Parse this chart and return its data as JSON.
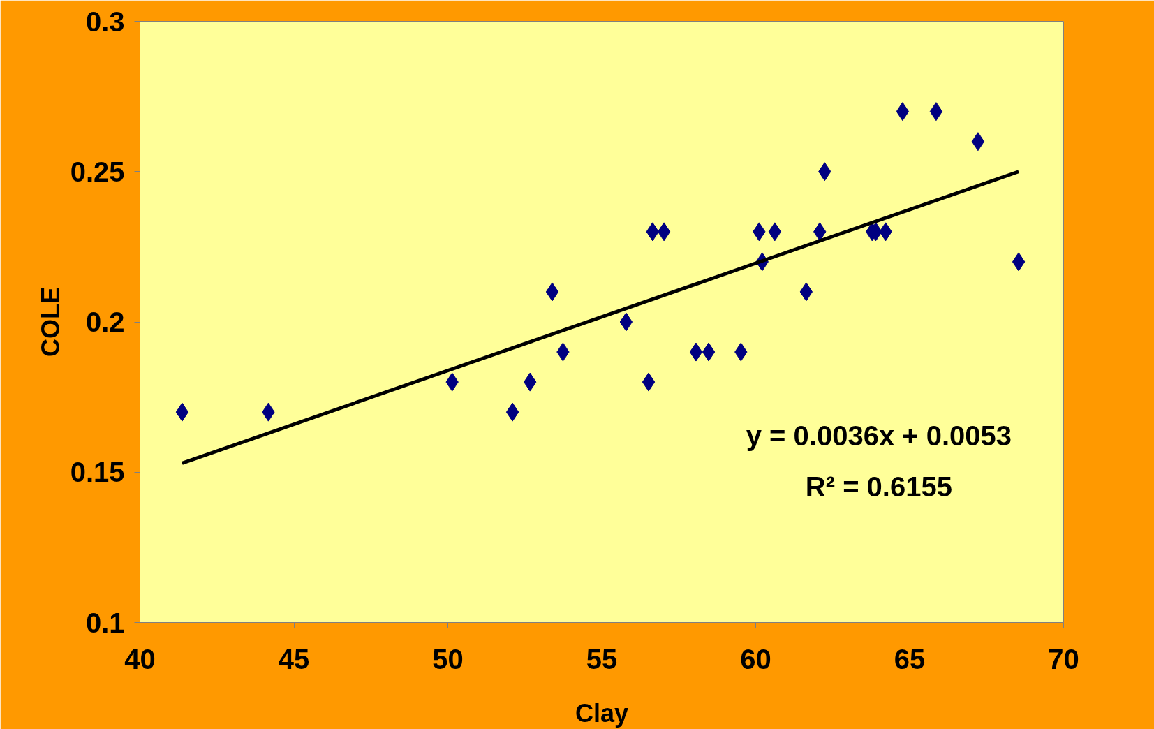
{
  "chart_data": {
    "type": "scatter",
    "xlabel": "Clay",
    "ylabel": "COLE",
    "xlim": [
      40,
      70
    ],
    "ylim": [
      0.1,
      0.3
    ],
    "xticks": [
      40,
      45,
      50,
      55,
      60,
      65,
      70
    ],
    "yticks": [
      0.1,
      0.15,
      0.2,
      0.25,
      0.3
    ],
    "grid": false,
    "marker": "diamond",
    "annotations": [
      "y = 0.0036x + 0.0053",
      "R² = 0.6155"
    ],
    "series": [
      {
        "color": "#000080",
        "x": [
          41.37,
          44.17,
          50.14,
          52.1,
          52.67,
          53.39,
          53.74,
          55.79,
          56.52,
          56.65,
          57.02,
          58.06,
          58.47,
          59.52,
          60.11,
          60.21,
          60.62,
          61.64,
          62.08,
          62.24,
          63.78,
          63.9,
          64.22,
          64.77,
          65.86,
          67.22,
          68.54
        ],
        "values": [
          0.17,
          0.17,
          0.18,
          0.17,
          0.18,
          0.21,
          0.19,
          0.2,
          0.18,
          0.23,
          0.23,
          0.19,
          0.19,
          0.19,
          0.23,
          0.22,
          0.23,
          0.21,
          0.23,
          0.25,
          0.23,
          0.23,
          0.23,
          0.27,
          0.27,
          0.26,
          0.22
        ]
      },
      {
        "type": "line",
        "marker": "none",
        "color": "#000000",
        "x": [
          41.37,
          68.54
        ],
        "values": [
          0.153,
          0.25
        ]
      }
    ]
  }
}
